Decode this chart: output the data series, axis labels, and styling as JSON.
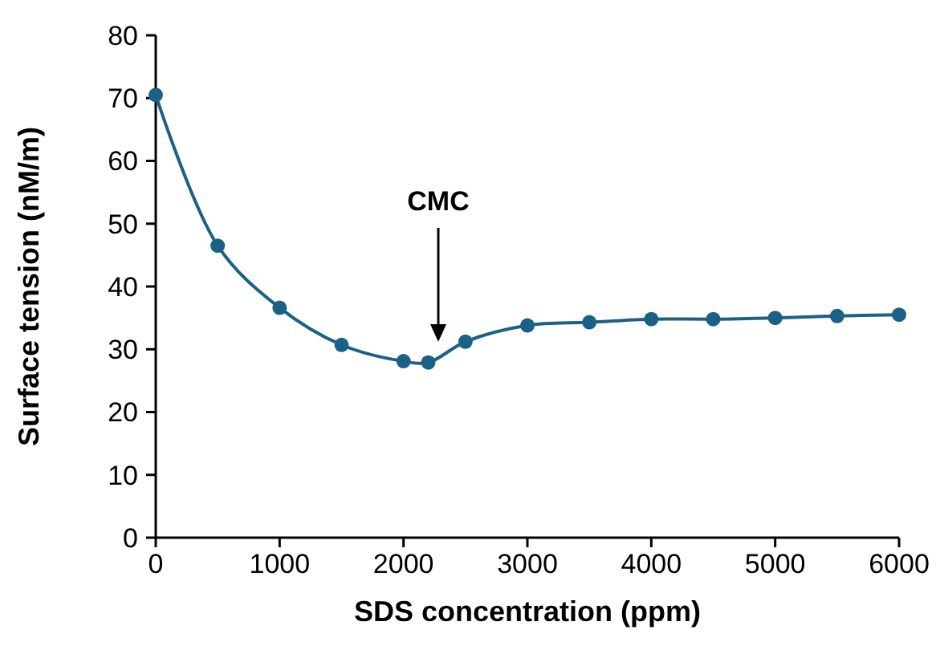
{
  "chart_data": {
    "type": "line",
    "xlabel": "SDS concentration (ppm)",
    "ylabel": "Surface tension (nM/m)",
    "x": [
      0,
      500,
      1000,
      1500,
      2000,
      2200,
      2500,
      3000,
      3500,
      4000,
      4500,
      5000,
      5500,
      6000
    ],
    "series": [
      {
        "color": "#1b6185",
        "values": [
          70.5,
          46.5,
          36.6,
          30.7,
          28.1,
          27.9,
          31.2,
          33.8,
          34.3,
          34.8,
          34.8,
          35.0,
          35.3,
          35.5
        ]
      }
    ],
    "xlim": [
      0,
      6000
    ],
    "xticks": [
      0,
      1000,
      2000,
      3000,
      4000,
      5000,
      6000
    ],
    "ylim": [
      0,
      80
    ],
    "yticks": [
      0,
      10,
      20,
      30,
      40,
      50,
      60,
      70,
      80
    ],
    "marker": "circle",
    "line_style": "solid",
    "annotations": [
      "CMC"
    ]
  }
}
